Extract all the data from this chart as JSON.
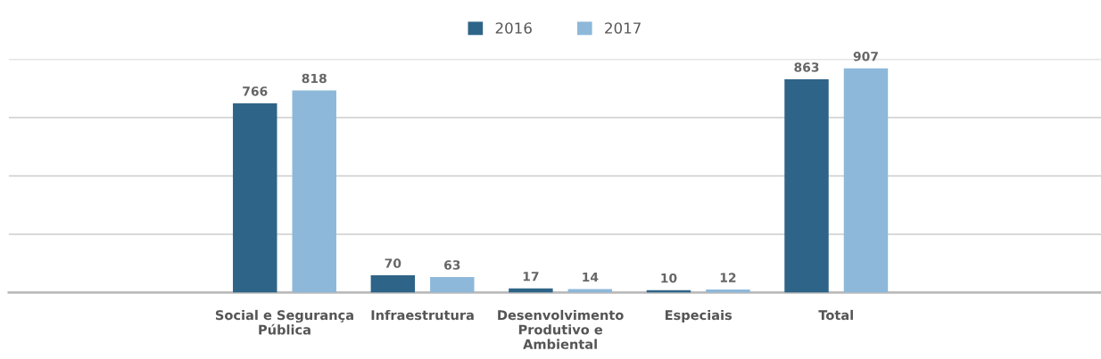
{
  "chart_data": {
    "type": "bar",
    "categories": [
      "Social e Segurança\nPública",
      "Infraestrutura",
      "Desenvolvimento\nProdutivo e\nAmbiental",
      "Especiais",
      "Total"
    ],
    "series": [
      {
        "name": "2016",
        "color": "#2e6487",
        "values": [
          766,
          70,
          17,
          10,
          863
        ]
      },
      {
        "name": "2017",
        "color": "#8db8d9",
        "values": [
          818,
          63,
          14,
          12,
          907
        ]
      }
    ],
    "ylim": [
      0,
      944
    ],
    "yticks": [
      {
        "value": 0,
        "label": null
      },
      {
        "value": 236,
        "label": null
      },
      {
        "value": 472,
        "label": null
      },
      {
        "value": 708,
        "label": null
      },
      {
        "value": 944,
        "label": null
      }
    ],
    "tick_labels": "x",
    "grid": "y",
    "legend": "top",
    "data_labels": true
  }
}
